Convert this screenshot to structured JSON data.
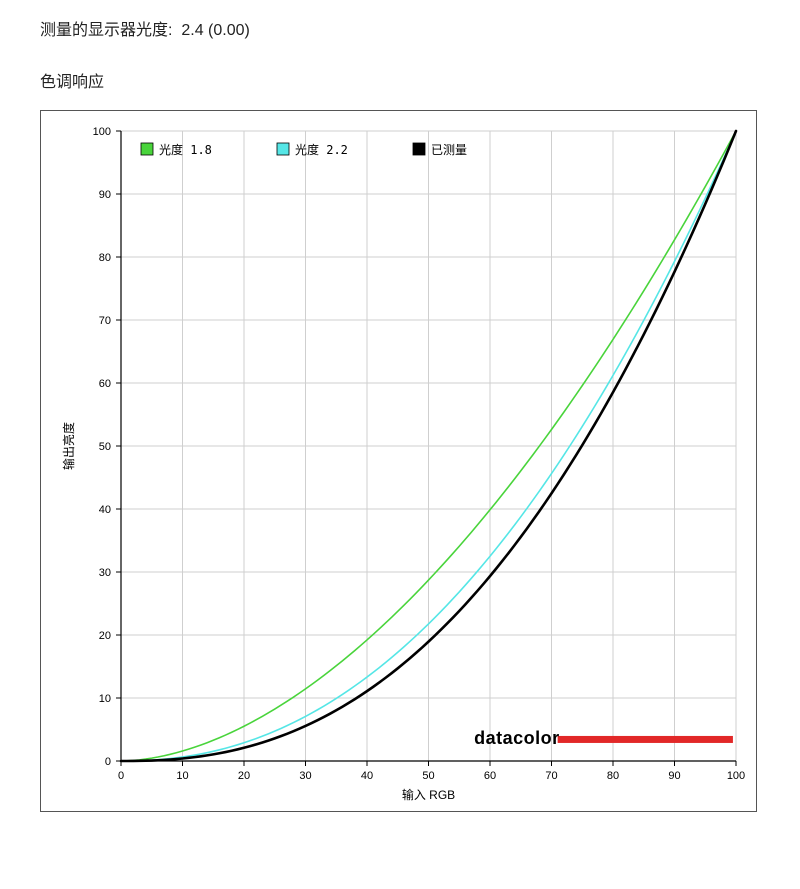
{
  "header": {
    "measured_gamma_label": "测量的显示器光度:",
    "measured_gamma_value": "2.4 (0.00)"
  },
  "section_title": "色调响应",
  "chart": {
    "type": "line",
    "xlabel": "输入 RGB",
    "ylabel": "输出亮度",
    "xlim": [
      0,
      100
    ],
    "ylim": [
      0,
      100
    ],
    "xtick_step": 10,
    "ytick_step": 10,
    "tick_fontsize": 11,
    "label_fontsize": 12,
    "background_color": "#ffffff",
    "grid_color": "#cfcfcf",
    "axis_color": "#000000",
    "legend": {
      "items": [
        {
          "swatch": "#49d43b",
          "label": "光度 1.8"
        },
        {
          "swatch": "#55e6e6",
          "label": "光度 2.2"
        },
        {
          "swatch": "#000000",
          "label": "已测量"
        }
      ],
      "label_fontsize": 12,
      "swatch_border": "#000000"
    },
    "series": [
      {
        "name": "gamma-1.8",
        "color": "#49d43b",
        "stroke_width": 1.6,
        "gamma": 1.8
      },
      {
        "name": "gamma-2.2",
        "color": "#55e6e6",
        "stroke_width": 1.6,
        "gamma": 2.2
      },
      {
        "name": "measured",
        "color": "#000000",
        "stroke_width": 2.6,
        "gamma": 2.4
      }
    ],
    "watermark": {
      "text": "datacolor",
      "text_color": "#000000",
      "bar_color": "#e22828",
      "font_family": "Arial, Helvetica, sans-serif",
      "font_weight": "bold",
      "font_size": 18
    }
  }
}
